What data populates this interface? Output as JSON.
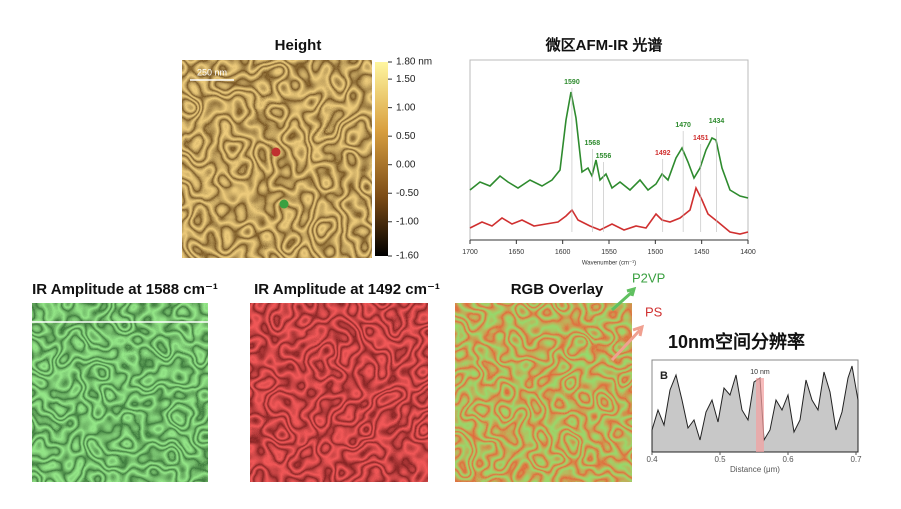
{
  "height_panel": {
    "title": "Height",
    "scale_bar": "250 nm",
    "colorbar_range": [
      -1.6,
      1.8
    ],
    "colorbar_ticks": [
      {
        "value": 1.8,
        "label": "1.80 nm"
      },
      {
        "value": 1.5,
        "label": "1.50"
      },
      {
        "value": 1.0,
        "label": "1.00"
      },
      {
        "value": 0.5,
        "label": "0.50"
      },
      {
        "value": 0,
        "label": "0.00"
      },
      {
        "value": -0.5,
        "label": "-0.50"
      },
      {
        "value": -1.0,
        "label": "-1.00"
      },
      {
        "value": -1.6,
        "label": "-1.60"
      }
    ]
  },
  "spectrum": {
    "title": "微区AFM-IR 光谱",
    "x_label": "Wavenumber (cm⁻¹)",
    "xlim": [
      1700,
      1400
    ],
    "xticks": [
      1700,
      1650,
      1600,
      1550,
      1500,
      1450,
      1400
    ],
    "peaks": [
      {
        "value": 1590,
        "color": "#2e8b2e"
      },
      {
        "value": 1568,
        "color": "#2e8b2e"
      },
      {
        "value": 1556,
        "color": "#2e8b2e"
      },
      {
        "value": 1492,
        "color": "#d03030"
      },
      {
        "value": 1470,
        "color": "#2e8b2e"
      },
      {
        "value": 1451,
        "color": "#d03030"
      },
      {
        "value": 1434,
        "color": "#2e8b2e"
      }
    ]
  },
  "maps": {
    "ir1588": "IR Amplitude at 1588 cm⁻¹",
    "ir1492": "IR Amplitude at 1492 cm⁻¹",
    "overlay": "RGB Overlay",
    "p2vp": "P2VP",
    "ps": "PS"
  },
  "resolution": {
    "title": "10nm空间分辨率",
    "panel_letter": "B",
    "marker": "10 nm",
    "x_label": "Distance (μm)",
    "xlim": [
      0.4,
      0.7
    ],
    "xticks": [
      {
        "value": 0.4,
        "label": "0.4"
      },
      {
        "value": 0.5,
        "label": "0.5"
      },
      {
        "value": 0.6,
        "label": "0.6"
      },
      {
        "value": 0.7,
        "label": "0.7"
      }
    ]
  }
}
